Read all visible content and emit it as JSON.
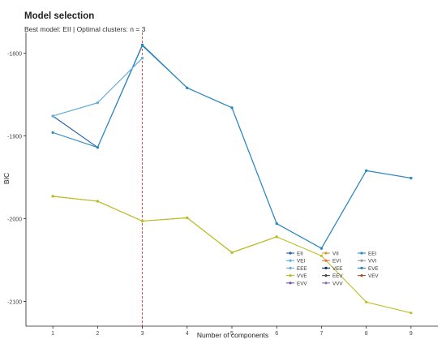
{
  "chart_data": {
    "type": "line",
    "title": "Model selection",
    "subtitle": "Best model: EII | Optimal clusters: n = 3",
    "xlabel": "Number of components",
    "ylabel": "BIC",
    "x": [
      1,
      2,
      3,
      4,
      5,
      6,
      7,
      8,
      9
    ],
    "xlim": [
      0.4,
      9.6
    ],
    "ylim": [
      -2130,
      -1775
    ],
    "yticks": [
      -2100,
      -2000,
      -1900,
      -1800
    ],
    "ytick_labels": [
      "-2100",
      "-2000",
      "-1900",
      "-1800"
    ],
    "xtick_labels": [
      "1",
      "2",
      "3",
      "4",
      "5",
      "6",
      "7",
      "8",
      "9"
    ],
    "grid": false,
    "legend_position": "bottom-right, inside plot",
    "vline": {
      "x": 3,
      "color": "#d62728",
      "style": "dashed"
    },
    "series": [
      {
        "name": "EII",
        "color": "#1f5fa8",
        "values": [
          -1876,
          -1914,
          -1790,
          -1842,
          -1866,
          -2006,
          -2036,
          -1942,
          -1951
        ]
      },
      {
        "name": "VII",
        "color": "#c9a227",
        "values": [
          -1973,
          -1979,
          -2003,
          -1999,
          -2041,
          -2022,
          null,
          null,
          null
        ]
      },
      {
        "name": "EEI",
        "color": "#2b8cc4",
        "values": [
          -1896,
          -1914,
          -1791,
          -1842,
          -1866,
          -2006,
          -2036,
          -1942,
          -1951
        ]
      },
      {
        "name": "VEI",
        "color": "#56b4e9",
        "values": [
          -1876,
          -1860,
          -1806,
          null,
          null,
          null,
          null,
          null,
          null
        ]
      },
      {
        "name": "EVI",
        "color": "#e8734a",
        "values": [
          null,
          null,
          null,
          null,
          null,
          null,
          null,
          null,
          null
        ]
      },
      {
        "name": "VVI",
        "color": "#999999",
        "values": [
          null,
          null,
          null,
          null,
          null,
          null,
          null,
          null,
          null
        ]
      },
      {
        "name": "EEE",
        "color": "#6baed6",
        "values": [
          -1876,
          -1860,
          -1806,
          null,
          null,
          null,
          null,
          null,
          null
        ]
      },
      {
        "name": "VEE",
        "color": "#08306b",
        "values": [
          null,
          null,
          null,
          null,
          null,
          null,
          null,
          null,
          null
        ]
      },
      {
        "name": "EVE",
        "color": "#2c7fb8",
        "values": [
          null,
          null,
          null,
          null,
          null,
          null,
          null,
          null,
          null
        ]
      },
      {
        "name": "VVE",
        "color": "#bcbd22",
        "values": [
          -1973,
          -1979,
          -2003,
          -1999,
          -2041,
          -2022,
          -2045,
          -2101,
          -2114
        ]
      },
      {
        "name": "EEV",
        "color": "#4a4a4a",
        "values": [
          null,
          null,
          null,
          null,
          null,
          null,
          null,
          null,
          null
        ]
      },
      {
        "name": "VEV",
        "color": "#a0522d",
        "values": [
          null,
          null,
          null,
          null,
          null,
          null,
          null,
          null,
          null
        ]
      },
      {
        "name": "EVV",
        "color": "#7b4f9d",
        "values": [
          null,
          null,
          null,
          null,
          null,
          null,
          null,
          null,
          null
        ]
      },
      {
        "name": "VVV",
        "color": "#9467bd",
        "values": [
          null,
          null,
          null,
          null,
          null,
          null,
          null,
          null,
          null
        ]
      }
    ],
    "legend": {
      "columns": 3,
      "items": [
        "EII",
        "VII",
        "EEI",
        "VEI",
        "EVI",
        "VVI",
        "EEE",
        "VEE",
        "EVE",
        "VVE",
        "EEV",
        "VEV",
        "EVV",
        "VVV"
      ]
    }
  }
}
